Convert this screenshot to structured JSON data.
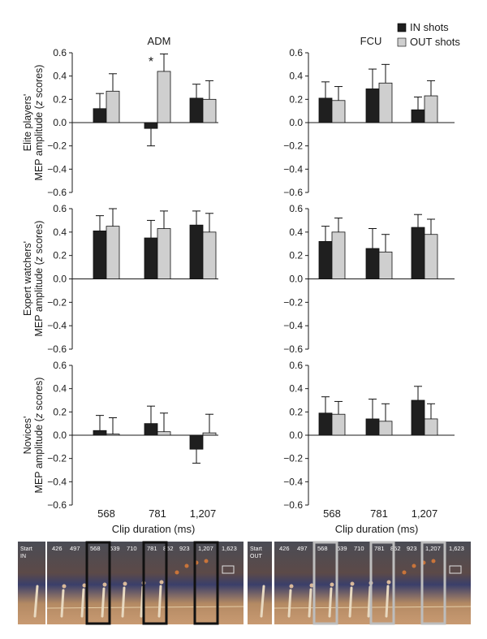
{
  "legend": {
    "in_label": "IN shots",
    "out_label": "OUT shots",
    "in_color": "#1f1f1f",
    "out_color": "#cfcfcf"
  },
  "columns": {
    "left_title": "ADM",
    "right_title": "FCU"
  },
  "rows": [
    {
      "label_line1": "Elite players'",
      "label_line2": "MEP amplitude (",
      "label_italic": "z",
      "label_end": " scores)"
    },
    {
      "label_line1": "Expert watchers'",
      "label_line2": "MEP amplitude (",
      "label_italic": "z",
      "label_end": " scores)"
    },
    {
      "label_line1": "Novices'",
      "label_line2": "MEP amplitude (",
      "label_italic": "z",
      "label_end": " scores)"
    }
  ],
  "xaxis": {
    "categories": [
      "568",
      "781",
      "1,207"
    ],
    "label": "Clip duration (ms)"
  },
  "yaxis": {
    "ticks": [
      "0.6",
      "0.4",
      "0.2",
      "0.0",
      "−0.2",
      "−0.4",
      "−0.6"
    ],
    "ylim": [
      -0.6,
      0.6
    ]
  },
  "chart_data": [
    {
      "type": "bar",
      "panel": "ADM, Elite players",
      "categories": [
        "568",
        "781",
        "1,207"
      ],
      "series": [
        {
          "name": "IN shots",
          "values": [
            0.12,
            -0.05,
            0.21
          ],
          "errors": [
            0.13,
            0.15,
            0.12
          ]
        },
        {
          "name": "OUT shots",
          "values": [
            0.27,
            0.44,
            0.2
          ],
          "errors": [
            0.15,
            0.15,
            0.16
          ]
        }
      ],
      "annotations": [
        {
          "category": "781",
          "text": "*"
        }
      ],
      "ylim": [
        -0.6,
        0.6
      ]
    },
    {
      "type": "bar",
      "panel": "FCU, Elite players",
      "categories": [
        "568",
        "781",
        "1,207"
      ],
      "series": [
        {
          "name": "IN shots",
          "values": [
            0.21,
            0.29,
            0.11
          ],
          "errors": [
            0.14,
            0.17,
            0.11
          ]
        },
        {
          "name": "OUT shots",
          "values": [
            0.19,
            0.34,
            0.23
          ],
          "errors": [
            0.12,
            0.16,
            0.13
          ]
        }
      ],
      "ylim": [
        -0.6,
        0.6
      ]
    },
    {
      "type": "bar",
      "panel": "ADM, Expert watchers",
      "categories": [
        "568",
        "781",
        "1,207"
      ],
      "series": [
        {
          "name": "IN shots",
          "values": [
            0.41,
            0.35,
            0.46
          ],
          "errors": [
            0.13,
            0.15,
            0.12
          ]
        },
        {
          "name": "OUT shots",
          "values": [
            0.45,
            0.43,
            0.4
          ],
          "errors": [
            0.15,
            0.15,
            0.16
          ]
        }
      ],
      "ylim": [
        -0.6,
        0.6
      ]
    },
    {
      "type": "bar",
      "panel": "FCU, Expert watchers",
      "categories": [
        "568",
        "781",
        "1,207"
      ],
      "series": [
        {
          "name": "IN shots",
          "values": [
            0.32,
            0.26,
            0.44
          ],
          "errors": [
            0.13,
            0.17,
            0.11
          ]
        },
        {
          "name": "OUT shots",
          "values": [
            0.4,
            0.23,
            0.38
          ],
          "errors": [
            0.12,
            0.15,
            0.13
          ]
        }
      ],
      "ylim": [
        -0.6,
        0.6
      ]
    },
    {
      "type": "bar",
      "panel": "ADM, Novices",
      "categories": [
        "568",
        "781",
        "1,207"
      ],
      "series": [
        {
          "name": "IN shots",
          "values": [
            0.04,
            0.1,
            -0.12
          ],
          "errors": [
            0.13,
            0.15,
            0.12
          ]
        },
        {
          "name": "OUT shots",
          "values": [
            0.01,
            0.03,
            0.02
          ],
          "errors": [
            0.14,
            0.16,
            0.16
          ]
        }
      ],
      "ylim": [
        -0.6,
        0.6
      ]
    },
    {
      "type": "bar",
      "panel": "FCU, Novices",
      "categories": [
        "568",
        "781",
        "1,207"
      ],
      "series": [
        {
          "name": "IN shots",
          "values": [
            0.19,
            0.14,
            0.3
          ],
          "errors": [
            0.14,
            0.17,
            0.12
          ]
        },
        {
          "name": "OUT shots",
          "values": [
            0.18,
            0.12,
            0.14
          ],
          "errors": [
            0.11,
            0.15,
            0.13
          ]
        }
      ],
      "ylim": [
        -0.6,
        0.6
      ]
    }
  ],
  "strips": [
    {
      "start_line1": "Start",
      "start_line2": "IN",
      "box_color": "#111111",
      "times": [
        "426",
        "497",
        "568",
        "639",
        "710",
        "781",
        "852",
        "923",
        "1,207",
        "1,623"
      ]
    },
    {
      "start_line1": "Start",
      "start_line2": "OUT",
      "box_color": "#bdbdbd",
      "times": [
        "426",
        "497",
        "568",
        "639",
        "710",
        "781",
        "852",
        "923",
        "1,207",
        "1,623"
      ]
    }
  ]
}
